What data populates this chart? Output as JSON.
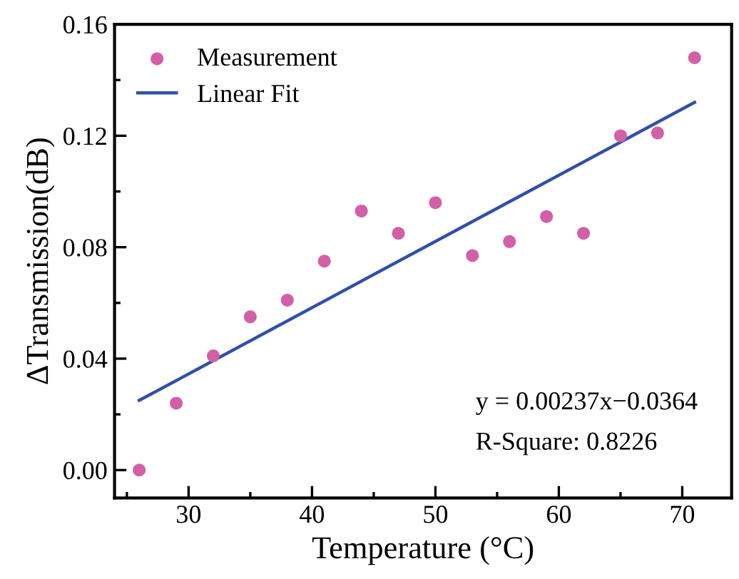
{
  "chart_data": {
    "type": "scatter",
    "xlabel": "Temperature (°C)",
    "ylabel": "ΔTransmission(dB)",
    "series": [
      {
        "name": "Measurement",
        "color": "#d35fa8",
        "marker": "circle",
        "x": [
          26,
          29,
          32,
          35,
          38,
          41,
          44,
          47,
          50,
          53,
          56,
          59,
          62,
          65,
          68,
          71
        ],
        "values": [
          0.0,
          0.024,
          0.041,
          0.055,
          0.061,
          0.075,
          0.093,
          0.085,
          0.096,
          0.077,
          0.082,
          0.091,
          0.085,
          0.12,
          0.121,
          0.148
        ]
      },
      {
        "name": "Linear Fit",
        "type": "line",
        "color": "#3050a8",
        "line_style": "solid",
        "x": [
          26,
          71
        ],
        "values": [
          0.025,
          0.132
        ]
      }
    ],
    "xlim": [
      24,
      74
    ],
    "ylim": [
      -0.01,
      0.16
    ],
    "xticks": [
      30,
      40,
      50,
      60,
      70
    ],
    "yticks": [
      {
        "value": 0,
        "label": "0.00"
      },
      {
        "value": 0.04,
        "label": "0.04"
      },
      {
        "value": 0.08,
        "label": "0.08"
      },
      {
        "value": 0.12,
        "label": "0.12"
      },
      {
        "value": 0.16,
        "label": "0.16"
      }
    ],
    "annotations": [
      "y = 0.00237x−0.0364",
      "R-Square: 0.8226"
    ],
    "legend": "top left",
    "grid": false
  }
}
